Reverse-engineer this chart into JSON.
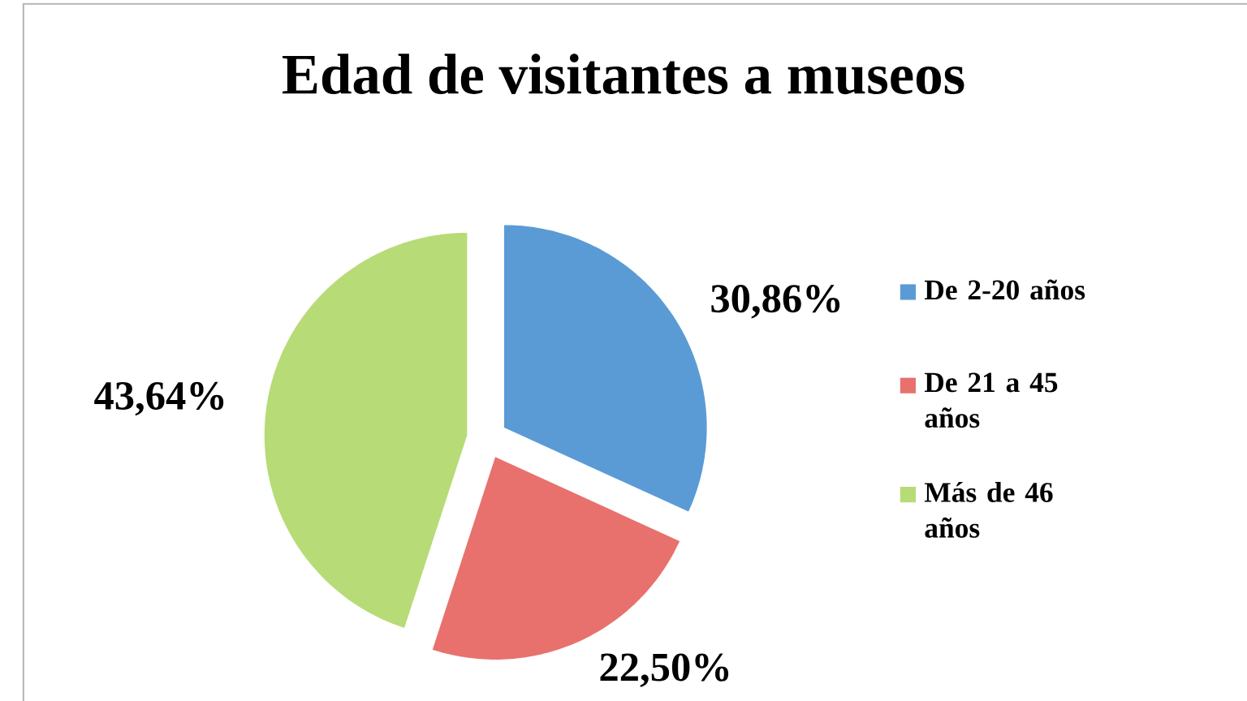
{
  "chart_data": {
    "type": "pie",
    "title": "Edad de visitantes a museos",
    "categories": [
      "De 2-20 años",
      "De 21 a 45 años",
      "Más de 46 años"
    ],
    "values": [
      30.86,
      22.5,
      43.64
    ],
    "value_labels": [
      "30,86%",
      "22,50%",
      "43,64%"
    ],
    "colors": [
      "#5b9bd5",
      "#e8716d",
      "#b7db76"
    ],
    "legend": "right"
  }
}
